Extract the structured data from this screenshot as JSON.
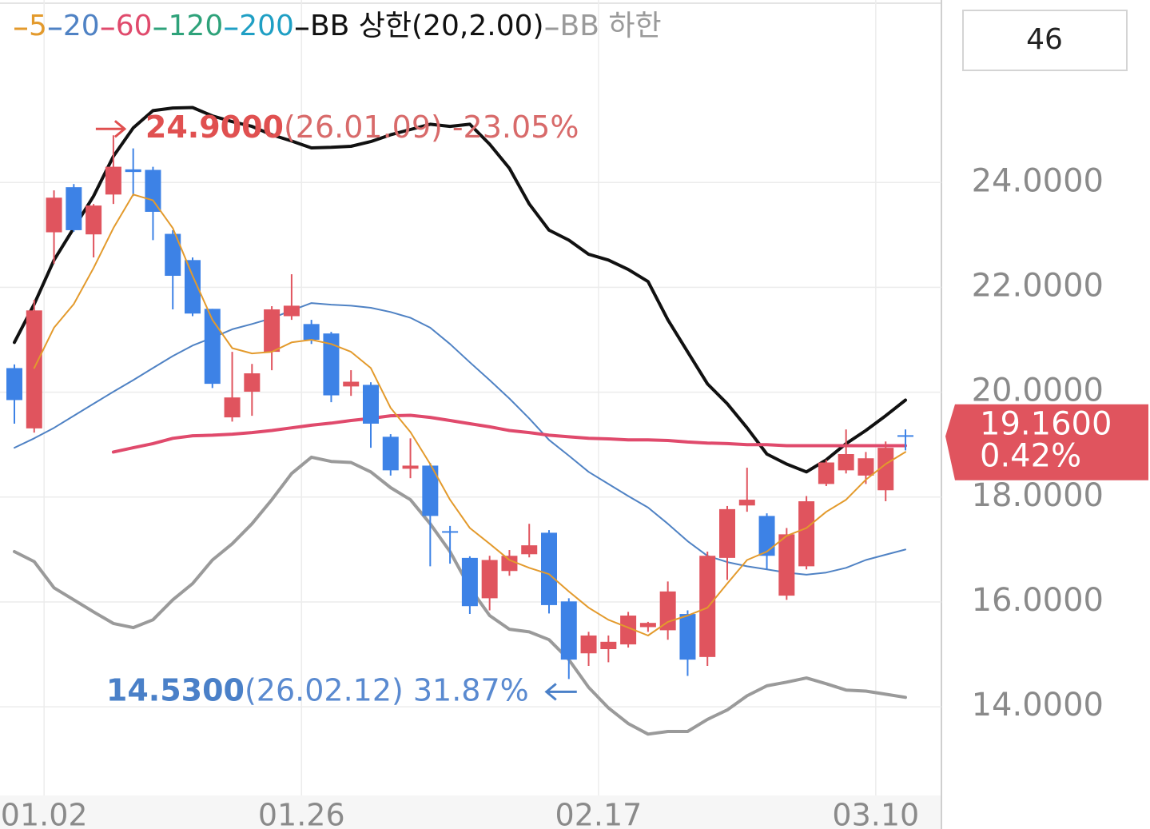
{
  "chart_data": {
    "type": "candlestick",
    "counter": 46,
    "categories": [
      null,
      null,
      "01.02",
      null,
      null,
      null,
      null,
      null,
      null,
      null,
      null,
      null,
      null,
      null,
      null,
      "01.26",
      null,
      null,
      null,
      null,
      null,
      null,
      null,
      null,
      null,
      null,
      null,
      null,
      null,
      null,
      "02.17",
      null,
      null,
      null,
      null,
      null,
      null,
      null,
      null,
      null,
      null,
      null,
      null,
      null,
      "03.10",
      null
    ],
    "open": [
      20.46,
      19.31,
      23.05,
      23.91,
      23.01,
      23.77,
      24.25,
      24.24,
      23.02,
      22.52,
      21.59,
      19.52,
      20.01,
      20.77,
      21.45,
      21.3,
      21.12,
      20.11,
      20.14,
      19.15,
      18.54,
      18.6,
      17.35,
      16.84,
      16.07,
      16.59,
      16.91,
      17.32,
      16.01,
      15.02,
      15.1,
      15.19,
      15.52,
      15.46,
      15.77,
      14.95,
      16.84,
      17.84,
      17.64,
      16.12,
      16.68,
      18.25,
      18.51,
      18.41,
      18.13,
      19.18
    ],
    "high": [
      20.53,
      21.76,
      23.85,
      23.97,
      23.59,
      24.9,
      24.65,
      24.3,
      23.09,
      22.57,
      21.59,
      20.77,
      20.54,
      21.64,
      22.25,
      21.38,
      21.15,
      20.42,
      20.19,
      19.2,
      19.12,
      18.65,
      17.45,
      16.87,
      16.88,
      16.99,
      17.49,
      17.37,
      16.07,
      15.43,
      15.36,
      15.81,
      15.62,
      16.39,
      15.84,
      16.96,
      17.83,
      18.56,
      17.69,
      17.41,
      18.02,
      18.71,
      19.29,
      18.86,
      19.06,
      19.29
    ],
    "low": [
      19.4,
      19.23,
      22.45,
      23.06,
      22.57,
      23.59,
      23.74,
      22.9,
      21.58,
      21.45,
      20.08,
      19.44,
      19.55,
      20.42,
      21.38,
      20.92,
      19.81,
      19.93,
      18.94,
      18.41,
      18.36,
      16.68,
      16.73,
      15.77,
      15.84,
      16.5,
      16.85,
      15.78,
      14.53,
      14.78,
      14.85,
      15.13,
      15.43,
      15.28,
      14.59,
      14.78,
      16.42,
      17.72,
      16.62,
      16.04,
      16.62,
      18.21,
      18.45,
      18.25,
      17.92,
      18.89
    ],
    "close": [
      19.85,
      21.56,
      23.71,
      23.09,
      23.56,
      24.3,
      24.2,
      23.44,
      22.22,
      21.5,
      20.16,
      19.9,
      20.36,
      21.58,
      21.65,
      21.0,
      19.94,
      20.2,
      19.4,
      18.51,
      18.6,
      17.64,
      17.33,
      15.92,
      16.8,
      16.88,
      17.08,
      15.94,
      14.9,
      15.36,
      15.24,
      15.74,
      15.6,
      16.2,
      14.9,
      16.88,
      17.77,
      17.95,
      16.88,
      17.29,
      17.92,
      18.66,
      18.82,
      18.74,
      18.94,
      19.16
    ],
    "up_color": "#e0545e",
    "down_color": "#3d82e6",
    "series": [
      {
        "name": "5",
        "color": "#e39a2c",
        "width": 2,
        "values": [
          null,
          20.46,
          21.23,
          21.68,
          22.37,
          23.13,
          23.77,
          23.66,
          23.13,
          22.22,
          21.38,
          20.84,
          20.74,
          20.77,
          20.95,
          21.0,
          20.92,
          20.77,
          20.46,
          19.7,
          19.24,
          18.63,
          17.95,
          17.41,
          17.11,
          16.8,
          16.65,
          16.53,
          16.2,
          15.89,
          15.66,
          15.51,
          15.36,
          15.62,
          15.74,
          15.89,
          16.35,
          16.8,
          16.96,
          17.26,
          17.41,
          17.72,
          17.95,
          18.33,
          18.63,
          18.86
        ]
      },
      {
        "name": "20",
        "color": "#4f82c4",
        "width": 2,
        "values": [
          18.94,
          19.12,
          19.32,
          19.55,
          19.78,
          20.01,
          20.23,
          20.46,
          20.69,
          20.89,
          21.04,
          21.2,
          21.3,
          21.41,
          21.56,
          21.7,
          21.67,
          21.65,
          21.61,
          21.53,
          21.42,
          21.23,
          20.92,
          20.57,
          20.23,
          19.88,
          19.5,
          19.09,
          18.79,
          18.48,
          18.25,
          18.02,
          17.8,
          17.49,
          17.16,
          16.88,
          16.76,
          16.68,
          16.62,
          16.56,
          16.52,
          16.56,
          16.65,
          16.8,
          16.9,
          17.0
        ]
      },
      {
        "name": "60",
        "color": "#e04a6c",
        "width": 4,
        "values": [
          null,
          null,
          null,
          null,
          null,
          18.86,
          18.94,
          19.02,
          19.12,
          19.17,
          19.18,
          19.2,
          19.23,
          19.27,
          19.32,
          19.37,
          19.41,
          19.46,
          19.5,
          19.55,
          19.56,
          19.52,
          19.46,
          19.4,
          19.34,
          19.27,
          19.23,
          19.18,
          19.15,
          19.12,
          19.11,
          19.09,
          19.09,
          19.08,
          19.05,
          19.03,
          19.02,
          19.0,
          19.0,
          18.98,
          18.98,
          18.98,
          18.98,
          18.98,
          18.98,
          18.98
        ]
      },
      {
        "name": "120",
        "color": "#2ea27a",
        "width": 2,
        "values": [
          null,
          null,
          null,
          null,
          null,
          null,
          null,
          null,
          null,
          null,
          null,
          null,
          null,
          null,
          null,
          null,
          null,
          null,
          null,
          null,
          null,
          null,
          null,
          null,
          null,
          null,
          null,
          null,
          null,
          null,
          null,
          null,
          null,
          null,
          null,
          null,
          null,
          null,
          null,
          null,
          null,
          null,
          null,
          null,
          null,
          null
        ]
      },
      {
        "name": "200",
        "color": "#1f9fc4",
        "width": 2,
        "values": [
          null,
          null,
          null,
          null,
          null,
          null,
          null,
          null,
          null,
          null,
          null,
          null,
          null,
          null,
          null,
          null,
          null,
          null,
          null,
          null,
          null,
          null,
          null,
          null,
          null,
          null,
          null,
          null,
          null,
          null,
          null,
          null,
          null,
          null,
          null,
          null,
          null,
          null,
          null,
          null,
          null,
          null,
          null,
          null,
          null,
          null
        ]
      },
      {
        "name": "BB 상한(20,2.00)",
        "color": "#111111",
        "width": 4,
        "values": [
          20.95,
          21.68,
          22.52,
          23.13,
          23.74,
          24.5,
          25.04,
          25.37,
          25.42,
          25.43,
          25.27,
          25.16,
          25.07,
          24.91,
          24.79,
          24.66,
          24.67,
          24.69,
          24.78,
          24.91,
          25.01,
          25.11,
          25.07,
          25.11,
          24.73,
          24.27,
          23.59,
          23.09,
          22.9,
          22.63,
          22.52,
          22.34,
          22.11,
          21.38,
          20.77,
          20.16,
          19.78,
          19.32,
          18.82,
          18.63,
          18.48,
          18.71,
          19.02,
          19.27,
          19.55,
          19.85
        ]
      },
      {
        "name": "BB 하한",
        "color": "#9a9a9a",
        "width": 4,
        "values": [
          16.96,
          16.77,
          16.27,
          16.04,
          15.81,
          15.59,
          15.51,
          15.66,
          16.04,
          16.35,
          16.8,
          17.11,
          17.49,
          17.95,
          18.45,
          18.76,
          18.68,
          18.66,
          18.48,
          18.18,
          17.95,
          17.49,
          16.96,
          16.27,
          15.74,
          15.48,
          15.43,
          15.28,
          14.9,
          14.37,
          13.98,
          13.68,
          13.48,
          13.53,
          13.53,
          13.76,
          13.94,
          14.21,
          14.4,
          14.47,
          14.55,
          14.44,
          14.32,
          14.3,
          14.24,
          14.18
        ]
      }
    ],
    "ylim": [
      12.31,
      27.48
    ],
    "yticks": [
      {
        "value": 14,
        "label": "14.0000"
      },
      {
        "value": 16,
        "label": "16.0000"
      },
      {
        "value": 18,
        "label": "18.0000"
      },
      {
        "value": 20,
        "label": "20.0000"
      },
      {
        "value": 22,
        "label": "22.0000"
      },
      {
        "value": 24,
        "label": "24.0000"
      }
    ],
    "grid": true,
    "high_annotation": {
      "value": 24.9,
      "label": "24.9000",
      "date": "(26.01.09)",
      "change": "-23.05%",
      "index": 5
    },
    "low_annotation": {
      "value": 14.53,
      "label": "14.5300",
      "date": "(26.02.12)",
      "change": "31.87%",
      "index": 28
    },
    "last": {
      "value": 19.16,
      "label": "19.1600",
      "change": "0.42%",
      "color": "#e0545e"
    }
  }
}
